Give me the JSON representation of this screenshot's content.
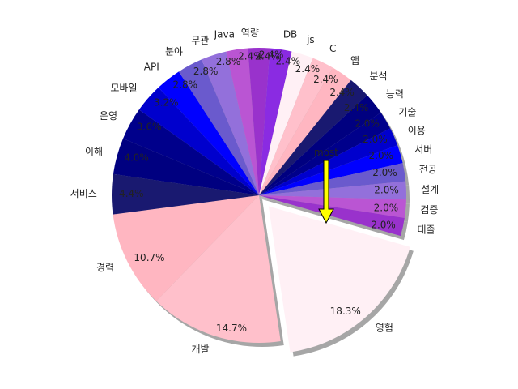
{
  "chart_data": {
    "type": "pie",
    "title": "",
    "slices": [
      {
        "label": "영험",
        "pct_label": "18.3%",
        "value": 18.3,
        "color": "#fff0f5",
        "explode": true
      },
      {
        "label": "개발",
        "pct_label": "14.7%",
        "value": 14.7,
        "color": "#ffc0cb",
        "explode": false
      },
      {
        "label": "경력",
        "pct_label": "10.7%",
        "value": 10.7,
        "color": "#ffb6c1",
        "explode": false
      },
      {
        "label": "서비스",
        "pct_label": "4.4%",
        "value": 4.4,
        "color": "#191970",
        "explode": false
      },
      {
        "label": "이해",
        "pct_label": "4.0%",
        "value": 4.0,
        "color": "#000080",
        "explode": false
      },
      {
        "label": "운영",
        "pct_label": "3.6%",
        "value": 3.6,
        "color": "#00008b",
        "explode": false
      },
      {
        "label": "모바일",
        "pct_label": "3.2%",
        "value": 3.2,
        "color": "#0000cd",
        "explode": false
      },
      {
        "label": "API",
        "pct_label": "2.8%",
        "value": 2.8,
        "color": "#0000ff",
        "explode": false
      },
      {
        "label": "분야",
        "pct_label": "2.8%",
        "value": 2.8,
        "color": "#6a5acd",
        "explode": false
      },
      {
        "label": "무관",
        "pct_label": "2.8%",
        "value": 2.8,
        "color": "#9370db",
        "explode": false
      },
      {
        "label": "Java",
        "pct_label": "2.4%",
        "value": 2.4,
        "color": "#ba55d3",
        "explode": false
      },
      {
        "label": "역량",
        "pct_label": "2.4%",
        "value": 2.4,
        "color": "#9932cc",
        "explode": false
      },
      {
        "label": "DB",
        "pct_label": "2.4%",
        "value": 2.4,
        "color": "#8a2be2",
        "explode": false
      },
      {
        "label": "js",
        "pct_label": "2.4%",
        "value": 2.4,
        "color": "#fff0f5",
        "explode": false
      },
      {
        "label": "C",
        "pct_label": "2.4%",
        "value": 2.4,
        "color": "#ffc0cb",
        "explode": false
      },
      {
        "label": "앱",
        "pct_label": "2.4%",
        "value": 2.4,
        "color": "#ffb6c1",
        "explode": false
      },
      {
        "label": "분석",
        "pct_label": "2.4%",
        "value": 2.4,
        "color": "#191970",
        "explode": false
      },
      {
        "label": "능력",
        "pct_label": "2.4%",
        "value": 2.4,
        "color": "#000080",
        "explode": false
      },
      {
        "label": "기술",
        "pct_label": "2.0%",
        "value": 2.0,
        "color": "#00008b",
        "explode": false
      },
      {
        "label": "이용",
        "pct_label": "2.0%",
        "value": 2.0,
        "color": "#0000cd",
        "explode": false
      },
      {
        "label": "서버",
        "pct_label": "2.0%",
        "value": 2.0,
        "color": "#0000ff",
        "explode": false
      },
      {
        "label": "전공",
        "pct_label": "2.0%",
        "value": 2.0,
        "color": "#6a5acd",
        "explode": false
      },
      {
        "label": "설계",
        "pct_label": "2.0%",
        "value": 2.0,
        "color": "#9370db",
        "explode": false
      },
      {
        "label": "검증",
        "pct_label": "2.0%",
        "value": 2.0,
        "color": "#ba55d3",
        "explode": false
      },
      {
        "label": "대졸",
        "pct_label": "2.0%",
        "value": 2.0,
        "color": "#9932cc",
        "explode": false
      }
    ],
    "annotation": {
      "text": "most",
      "arrow_color": "#ffff00",
      "target_slice": "영험"
    },
    "shadow": true,
    "legend": "none"
  }
}
